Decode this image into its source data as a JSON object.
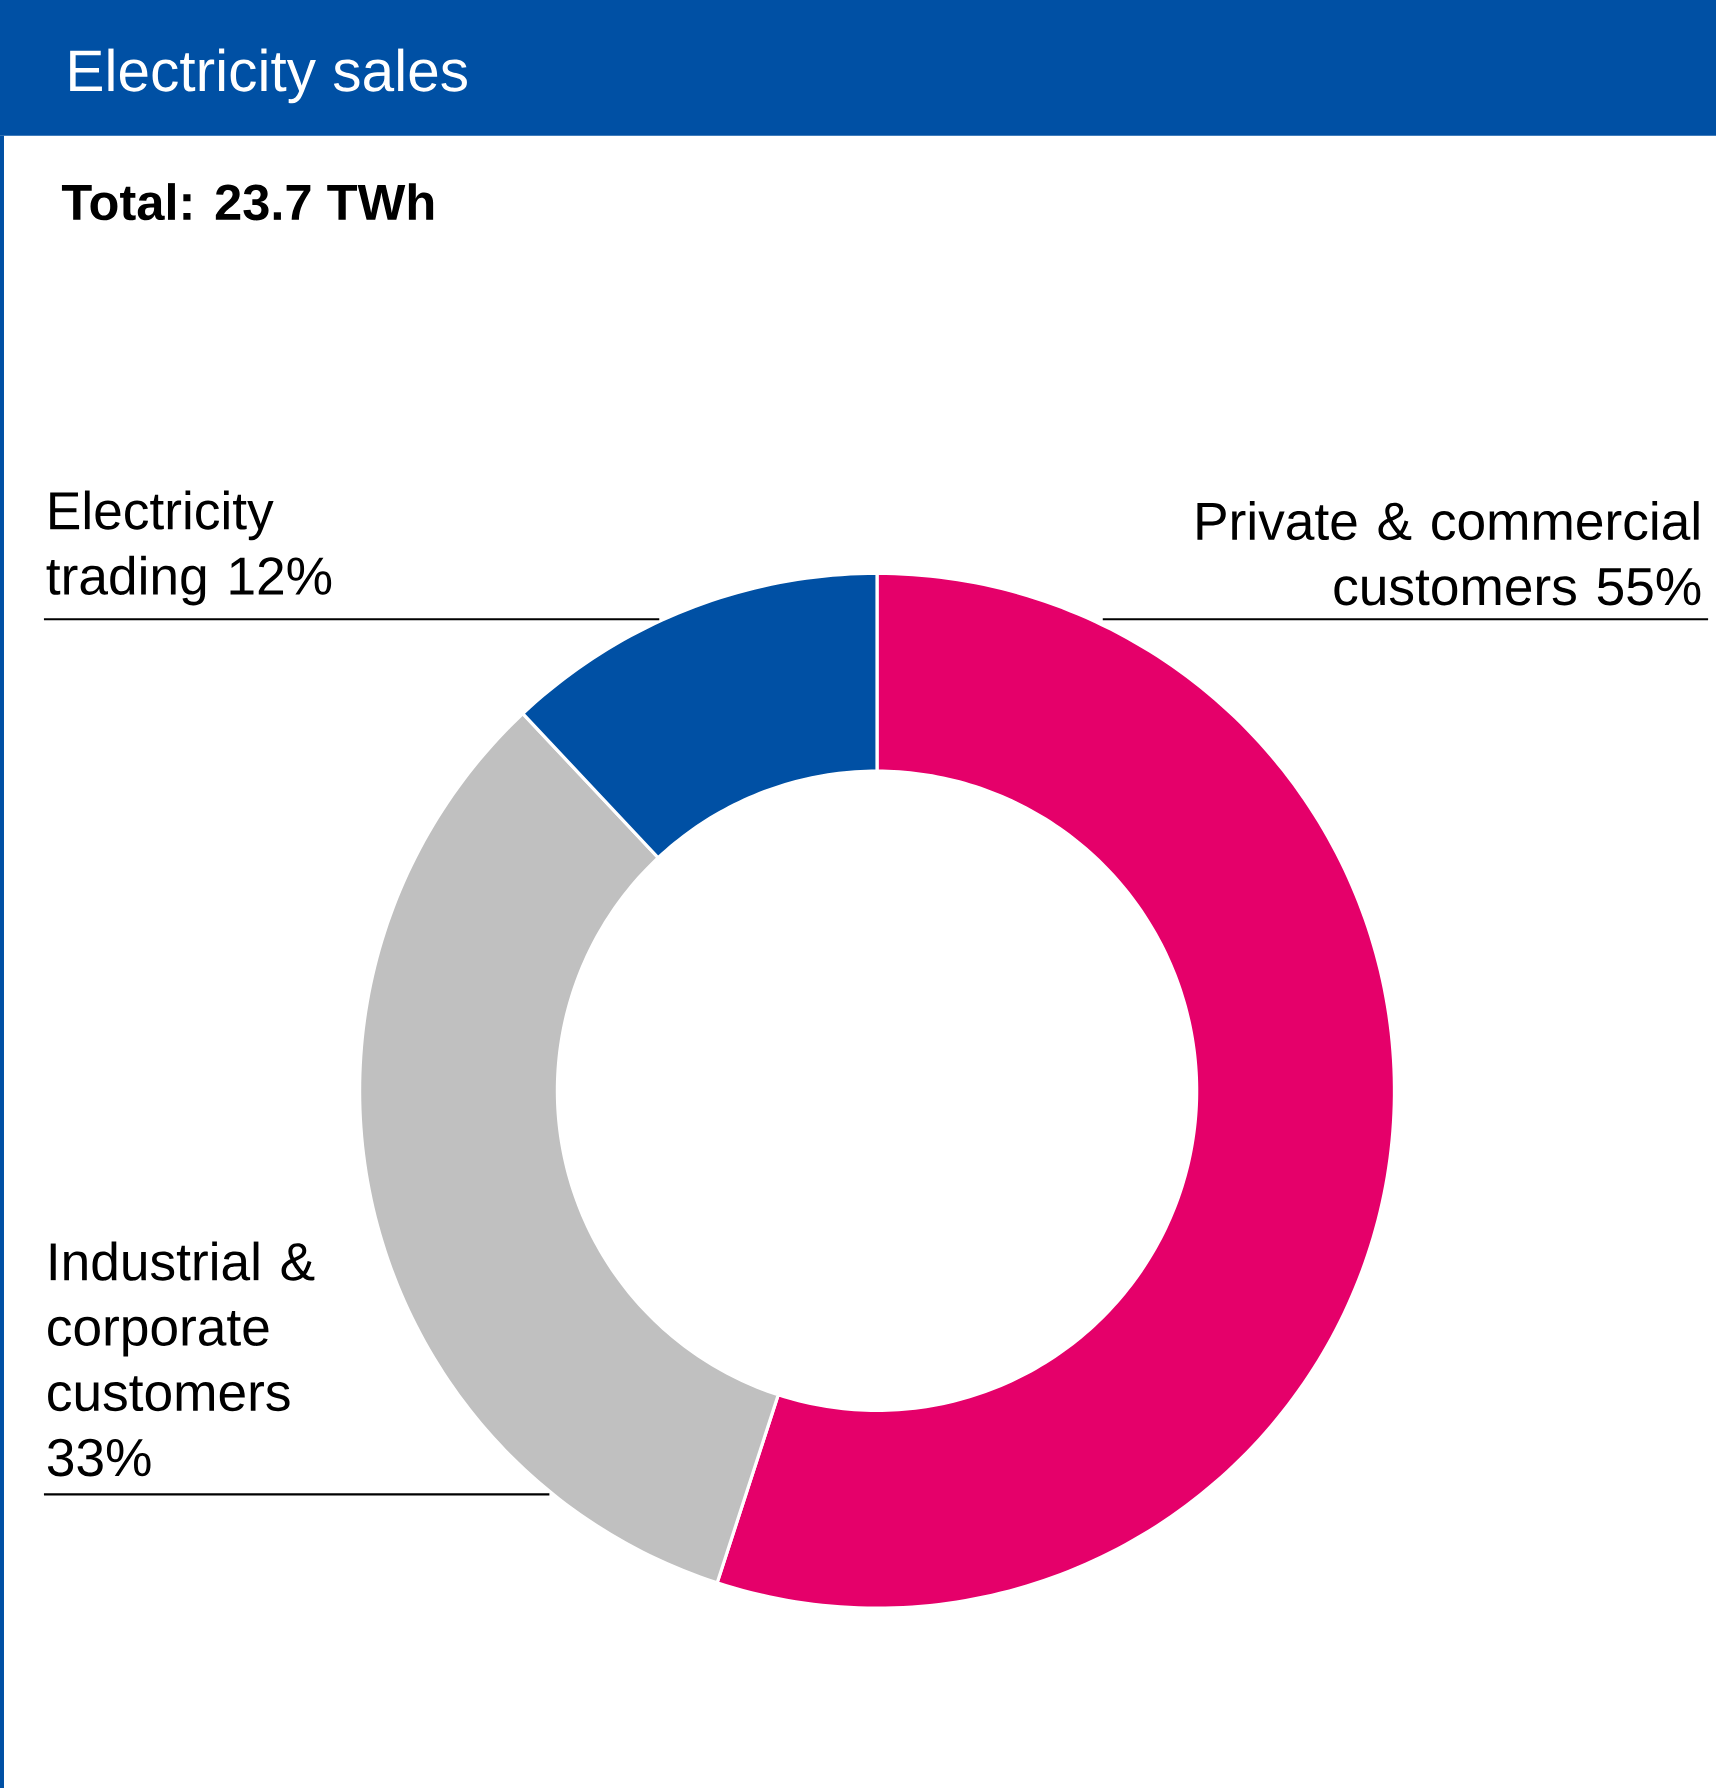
{
  "chart_data": {
    "type": "donut",
    "title": "Electricity sales",
    "subtitle": "Total: 23.7 TWh",
    "categories": [
      "Private & commercial customers",
      "Industrial & corporate customers",
      "Electricity trading"
    ],
    "values": [
      55,
      33,
      12
    ],
    "value_labels": [
      "55%",
      "33%",
      "12%"
    ],
    "colors": [
      "#e5006a",
      "#c0c0c0",
      "#0050a4"
    ]
  }
}
